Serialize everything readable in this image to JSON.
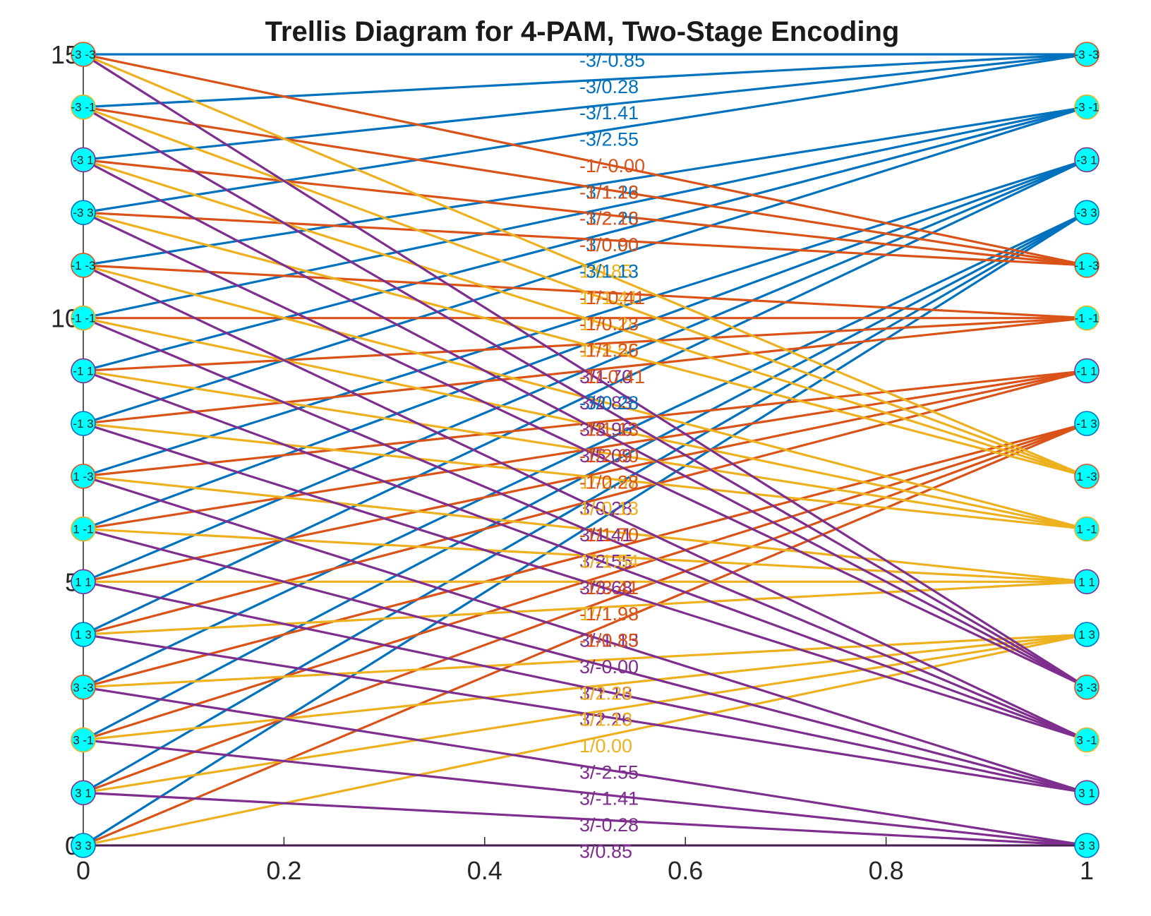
{
  "chart_data": {
    "type": "line",
    "title": "Trellis Diagram for 4-PAM, Two-Stage Encoding",
    "xlabel": "",
    "ylabel": "",
    "xlim": [
      0,
      1
    ],
    "ylim": [
      0,
      15
    ],
    "x_ticks": [
      "0",
      "0.2",
      "0.4",
      "0.6",
      "0.8",
      "1"
    ],
    "y_ticks": [
      "0",
      "5",
      "10",
      "15"
    ],
    "grid": false,
    "node_fill": "#00ffff",
    "colors": {
      "-3": "#0072bd",
      "-1": "#d95319",
      "1": "#edb120",
      "3": "#7e2f8e",
      "axis": "#262626"
    },
    "states": [
      {
        "y": 15,
        "left_label": "-3 -3",
        "right_label": "-3 -3"
      },
      {
        "y": 14,
        "left_label": "-3 -1",
        "right_label": "-3 -1"
      },
      {
        "y": 13,
        "left_label": "-3 1",
        "right_label": "-3 1"
      },
      {
        "y": 12,
        "left_label": "-3 3",
        "right_label": "-3 3"
      },
      {
        "y": 11,
        "left_label": "-1 -3",
        "right_label": "-1 -3"
      },
      {
        "y": 10,
        "left_label": "-1 -1",
        "right_label": "-1 -1"
      },
      {
        "y": 9,
        "left_label": "-1 1",
        "right_label": "-1 1"
      },
      {
        "y": 8,
        "left_label": "-1 3",
        "right_label": "-1 3"
      },
      {
        "y": 7,
        "left_label": "1 -3",
        "right_label": "1 -3"
      },
      {
        "y": 6,
        "left_label": "1 -1",
        "right_label": "1 -1"
      },
      {
        "y": 5,
        "left_label": "1 1",
        "right_label": "1 1"
      },
      {
        "y": 4,
        "left_label": "1 3",
        "right_label": "1 3"
      },
      {
        "y": 3,
        "left_label": "3 -3",
        "right_label": "3 -3"
      },
      {
        "y": 2,
        "left_label": "3 -1",
        "right_label": "3 -1"
      },
      {
        "y": 1,
        "left_label": "3 1",
        "right_label": "3 1"
      },
      {
        "y": 0,
        "left_label": "3 3",
        "right_label": "3 3"
      }
    ],
    "transition_rule": "input symbol selects color; destination state = input paired with the first symbol of the source state",
    "edge_labels": [
      {
        "text": "-3/-0.85",
        "y": 14.9,
        "color": "#0072bd"
      },
      {
        "text": "-3/0.28",
        "y": 14.4,
        "color": "#0072bd"
      },
      {
        "text": "-3/1.41",
        "y": 13.9,
        "color": "#0072bd"
      },
      {
        "text": "-3/2.55",
        "y": 13.4,
        "color": "#0072bd"
      },
      {
        "text": "-1/-0.00",
        "y": 12.9,
        "color": "#d95319"
      },
      {
        "text": "-3/1.26",
        "y": 12.4,
        "color": "#0072bd"
      },
      {
        "text": "-1/1.13",
        "y": 12.4,
        "color": "#d95319"
      },
      {
        "text": "-3/2.26",
        "y": 11.9,
        "color": "#0072bd"
      },
      {
        "text": "-1/2.13",
        "y": 11.9,
        "color": "#d95319"
      },
      {
        "text": "-3/0.00",
        "y": 11.4,
        "color": "#0072bd"
      },
      {
        "text": "-1/0.90",
        "y": 11.4,
        "color": "#d95319"
      },
      {
        "text": "1/0.85",
        "y": 10.9,
        "color": "#edb120"
      },
      {
        "text": "-3/1.13",
        "y": 10.9,
        "color": "#0072bd"
      },
      {
        "text": "1/-1.41",
        "y": 10.4,
        "color": "#edb120"
      },
      {
        "text": "-1/-0.41",
        "y": 10.4,
        "color": "#d95319"
      },
      {
        "text": "1/-0.28",
        "y": 9.9,
        "color": "#edb120"
      },
      {
        "text": "-1/0.13",
        "y": 9.9,
        "color": "#d95319"
      },
      {
        "text": "1/-2.55",
        "y": 9.4,
        "color": "#edb120"
      },
      {
        "text": "-1/1.26",
        "y": 9.4,
        "color": "#d95319"
      },
      {
        "text": "3/1.70",
        "y": 8.9,
        "color": "#7e2f8e"
      },
      {
        "text": "-1/-0.41",
        "y": 8.9,
        "color": "#d95319"
      },
      {
        "text": "3/2.83",
        "y": 8.4,
        "color": "#7e2f8e"
      },
      {
        "text": "-3/0.28",
        "y": 8.4,
        "color": "#0072bd"
      },
      {
        "text": "3/3.96",
        "y": 7.9,
        "color": "#7e2f8e"
      },
      {
        "text": "-1/1.13",
        "y": 7.9,
        "color": "#d95319"
      },
      {
        "text": "3/5.09",
        "y": 7.4,
        "color": "#7e2f8e"
      },
      {
        "text": "-1/2.60",
        "y": 7.4,
        "color": "#d95319"
      },
      {
        "text": "1/-2.97",
        "y": 6.9,
        "color": "#edb120"
      },
      {
        "text": "-1/0.28",
        "y": 6.9,
        "color": "#d95319"
      },
      {
        "text": "3/0.28",
        "y": 6.4,
        "color": "#7e2f8e"
      },
      {
        "text": "1/-0.13",
        "y": 6.4,
        "color": "#edb120"
      },
      {
        "text": "3/1.41",
        "y": 5.9,
        "color": "#7e2f8e"
      },
      {
        "text": "-1/1.70",
        "y": 5.9,
        "color": "#d95319"
      },
      {
        "text": "3/2.55",
        "y": 5.4,
        "color": "#7e2f8e"
      },
      {
        "text": "1/-1.54",
        "y": 5.4,
        "color": "#edb120"
      },
      {
        "text": "3/3.68",
        "y": 4.9,
        "color": "#7e2f8e"
      },
      {
        "text": "-1/3.41",
        "y": 4.9,
        "color": "#d95319"
      },
      {
        "text": "1/-1.98",
        "y": 4.4,
        "color": "#edb120"
      },
      {
        "text": "-1/1.98",
        "y": 4.4,
        "color": "#d95319"
      },
      {
        "text": "3/-1.13",
        "y": 3.9,
        "color": "#7e2f8e"
      },
      {
        "text": "-1/0.85",
        "y": 3.9,
        "color": "#d95319"
      },
      {
        "text": "3/-0.00",
        "y": 3.4,
        "color": "#7e2f8e"
      },
      {
        "text": "3/1.13",
        "y": 2.9,
        "color": "#7e2f8e"
      },
      {
        "text": "1/2.26",
        "y": 2.9,
        "color": "#edb120"
      },
      {
        "text": "3/2.26",
        "y": 2.4,
        "color": "#7e2f8e"
      },
      {
        "text": "1/1.13",
        "y": 2.4,
        "color": "#edb120"
      },
      {
        "text": "1/0.00",
        "y": 1.9,
        "color": "#edb120"
      },
      {
        "text": "3/-2.55",
        "y": 1.4,
        "color": "#7e2f8e"
      },
      {
        "text": "3/-1.41",
        "y": 0.9,
        "color": "#7e2f8e"
      },
      {
        "text": "3/-0.28",
        "y": 0.4,
        "color": "#7e2f8e"
      },
      {
        "text": "3/0.85",
        "y": -0.1,
        "color": "#7e2f8e"
      }
    ]
  }
}
